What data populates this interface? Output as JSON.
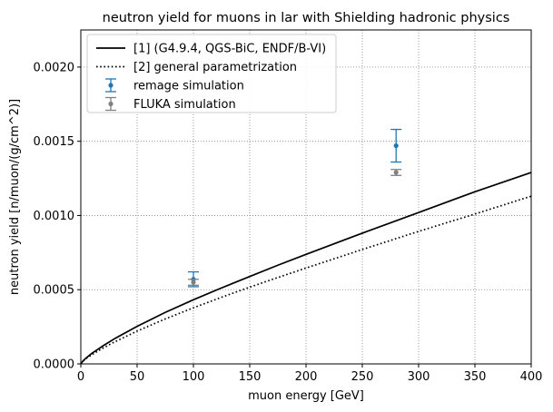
{
  "chart_data": {
    "type": "line",
    "title": "neutron yield for muons in lar with Shielding hadronic physics",
    "xlabel": "muon energy [GeV]",
    "ylabel": "neutron yield [n/muon/(g/cm^2)]",
    "xlim": [
      0,
      400
    ],
    "ylim": [
      0,
      0.00225
    ],
    "x_ticks": [
      0,
      50,
      100,
      150,
      200,
      250,
      300,
      350,
      400
    ],
    "x_tick_labels": [
      "0",
      "50",
      "100",
      "150",
      "200",
      "250",
      "300",
      "350",
      "400"
    ],
    "y_ticks": [
      0,
      0.0005,
      0.001,
      0.0015,
      0.002
    ],
    "y_tick_labels": [
      "0.0000",
      "0.0005",
      "0.0010",
      "0.0015",
      "0.0020"
    ],
    "grid": true,
    "legend_position": "top-left",
    "series": [
      {
        "name": "[1] (G4.9.4, QGS-BiC, ENDF/B-VI)",
        "kind": "line",
        "style": "solid",
        "color": "#000000",
        "x": [
          0,
          2,
          5,
          10,
          20,
          30,
          50,
          75,
          100,
          125,
          150,
          175,
          200,
          250,
          300,
          350,
          400
        ],
        "y": [
          0,
          2.11e-05,
          4.22e-05,
          7.21e-05,
          0.000123,
          0.00017,
          0.000253,
          0.000347,
          0.000432,
          0.000512,
          0.000589,
          0.000665,
          0.000738,
          0.000881,
          0.00102,
          0.00116,
          0.00129
        ]
      },
      {
        "name": "[2] general parametrization",
        "kind": "line",
        "style": "dotted",
        "color": "#000000",
        "x": [
          0,
          2,
          5,
          10,
          20,
          30,
          50,
          75,
          100,
          125,
          150,
          175,
          200,
          250,
          300,
          350,
          400
        ],
        "y": [
          0,
          1.84e-05,
          3.69e-05,
          6.3e-05,
          0.000108,
          0.000148,
          0.000221,
          0.000303,
          0.000378,
          0.000449,
          0.000517,
          0.000582,
          0.000646,
          0.000771,
          0.000893,
          0.00101,
          0.00113
        ]
      },
      {
        "name": "remage simulation",
        "kind": "errorbar",
        "color": "#1f77b4",
        "x": [
          100,
          280
        ],
        "y": [
          0.00057,
          0.00147
        ],
        "yerr": [
          5e-05,
          0.00011
        ]
      },
      {
        "name": "FLUKA simulation",
        "kind": "errorbar",
        "color": "#808080",
        "x": [
          100,
          280
        ],
        "y": [
          0.00055,
          0.00129
        ],
        "yerr": [
          2e-05,
          2e-05
        ]
      }
    ]
  }
}
